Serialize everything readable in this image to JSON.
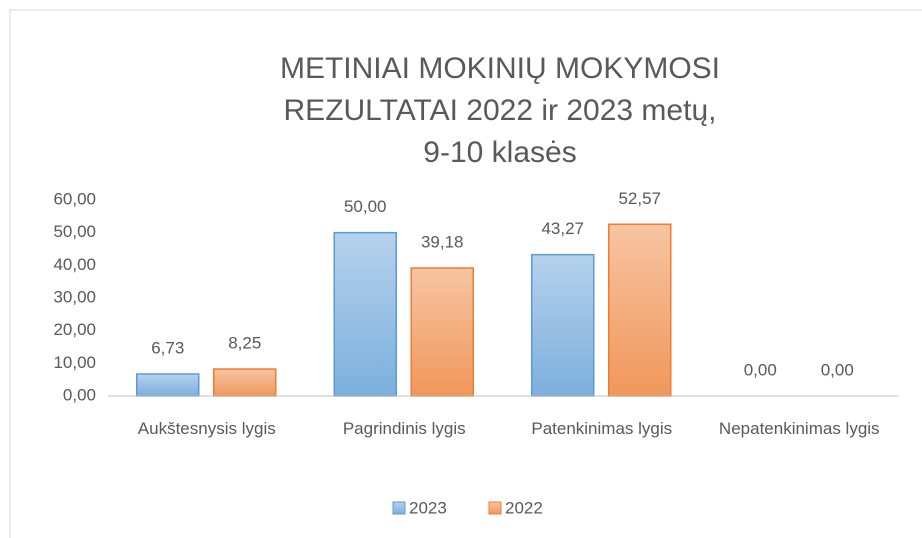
{
  "chart_data": {
    "type": "bar",
    "title": [
      "METINIAI MOKINIŲ MOKYMOSI",
      "REZULTATAI 2022 ir 2023 metų,",
      "9-10 klasės"
    ],
    "categories": [
      "Aukštesnysis lygis",
      "Pagrindinis lygis",
      "Patenkinimas lygis",
      "Nepatenkinimas lygis"
    ],
    "series": [
      {
        "name": "2023",
        "color": "#5b9bd5",
        "values": [
          6.73,
          50,
          43.27,
          0
        ],
        "value_labels": [
          "6,73",
          "50,00",
          "43,27",
          "0,00"
        ]
      },
      {
        "name": "2022",
        "color": "#ed7d31",
        "values": [
          8.25,
          39.18,
          52.57,
          0
        ],
        "value_labels": [
          "8,25",
          "39,18",
          "52,57",
          "0,00"
        ]
      }
    ],
    "ylim": [
      0,
      60
    ],
    "yticks": [
      {
        "value": 0,
        "label": "0,00"
      },
      {
        "value": 10,
        "label": "10,00"
      },
      {
        "value": 20,
        "label": "20,00"
      },
      {
        "value": 30,
        "label": "30,00"
      },
      {
        "value": 40,
        "label": "40,00"
      },
      {
        "value": 50,
        "label": "50,00"
      },
      {
        "value": 60,
        "label": "60,00"
      }
    ],
    "grid": false,
    "legend": "bottom"
  }
}
